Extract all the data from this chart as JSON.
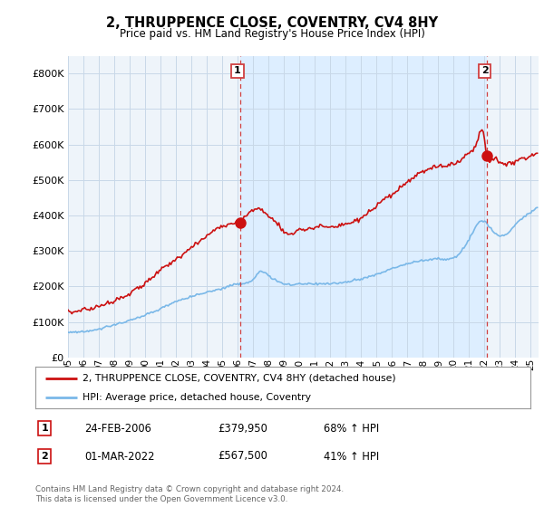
{
  "title": "2, THRUPPENCE CLOSE, COVENTRY, CV4 8HY",
  "subtitle": "Price paid vs. HM Land Registry's House Price Index (HPI)",
  "xlim_start": 1995.0,
  "xlim_end": 2025.5,
  "ylim": [
    0,
    850000
  ],
  "yticks": [
    0,
    100000,
    200000,
    300000,
    400000,
    500000,
    600000,
    700000,
    800000
  ],
  "ytick_labels": [
    "£0",
    "£100K",
    "£200K",
    "£300K",
    "£400K",
    "£500K",
    "£600K",
    "£700K",
    "£800K"
  ],
  "xtick_years": [
    1995,
    1996,
    1997,
    1998,
    1999,
    2000,
    2001,
    2002,
    2003,
    2004,
    2005,
    2006,
    2007,
    2008,
    2009,
    2010,
    2011,
    2012,
    2013,
    2014,
    2015,
    2016,
    2017,
    2018,
    2019,
    2020,
    2021,
    2022,
    2023,
    2024,
    2025
  ],
  "sale1_x": 2006.14,
  "sale1_y": 379950,
  "sale1_label": "1",
  "sale2_x": 2022.17,
  "sale2_y": 567500,
  "sale2_label": "2",
  "vline_color": "#d04040",
  "shade_color": "#ddeeff",
  "hpi_color": "#7ab8e8",
  "price_color": "#cc1111",
  "legend_line1": "2, THRUPPENCE CLOSE, COVENTRY, CV4 8HY (detached house)",
  "legend_line2": "HPI: Average price, detached house, Coventry",
  "table_row1_num": "1",
  "table_row1_date": "24-FEB-2006",
  "table_row1_price": "£379,950",
  "table_row1_hpi": "68% ↑ HPI",
  "table_row2_num": "2",
  "table_row2_date": "01-MAR-2022",
  "table_row2_price": "£567,500",
  "table_row2_hpi": "41% ↑ HPI",
  "footnote": "Contains HM Land Registry data © Crown copyright and database right 2024.\nThis data is licensed under the Open Government Licence v3.0.",
  "background_color": "#ffffff",
  "grid_color": "#c8d8e8",
  "chart_bg": "#eef4fa"
}
